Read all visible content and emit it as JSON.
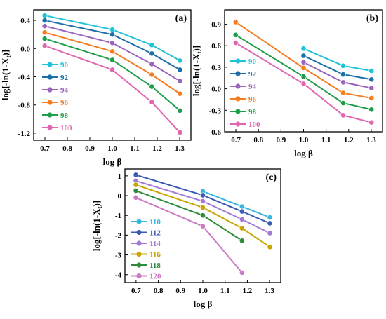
{
  "chart_data": [
    {
      "type": "line",
      "panel_label": "(a)",
      "xlabel": "log β",
      "ylabel": "log[-ln(1-X_t)]",
      "xlim": [
        0.65,
        1.35
      ],
      "ylim": [
        -1.3,
        0.55
      ],
      "xticks": [
        0.7,
        0.8,
        0.9,
        1.0,
        1.1,
        1.2,
        1.3
      ],
      "xtick_labels": [
        "0.7",
        "0.8",
        "0.9",
        "1.0",
        "1.1",
        "1.2",
        "1.3"
      ],
      "yticks": [
        -1.2,
        -0.8,
        -0.4,
        0.0,
        0.4
      ],
      "ytick_labels": [
        "-1.2",
        "-0.8",
        "-0.4",
        "0.0",
        "0.4"
      ],
      "legend_position": "left",
      "series": [
        {
          "name": "90",
          "color": "#1fc3d8",
          "x": [
            0.699,
            1.0,
            1.176,
            1.301
          ],
          "y": [
            0.47,
            0.27,
            0.05,
            -0.17
          ]
        },
        {
          "name": "92",
          "color": "#1c6fa8",
          "x": [
            0.699,
            1.0,
            1.176,
            1.301
          ],
          "y": [
            0.4,
            0.2,
            -0.07,
            -0.3
          ]
        },
        {
          "name": "94",
          "color": "#9966bb",
          "x": [
            0.699,
            1.0,
            1.176,
            1.301
          ],
          "y": [
            0.32,
            0.08,
            -0.22,
            -0.46
          ]
        },
        {
          "name": "96",
          "color": "#f57c1f",
          "x": [
            0.699,
            1.0,
            1.176,
            1.301
          ],
          "y": [
            0.23,
            -0.04,
            -0.37,
            -0.64
          ]
        },
        {
          "name": "98",
          "color": "#1f9e4a",
          "x": [
            0.699,
            1.0,
            1.176,
            1.301
          ],
          "y": [
            0.14,
            -0.16,
            -0.54,
            -0.88
          ]
        },
        {
          "name": "100",
          "color": "#e066b0",
          "x": [
            0.699,
            1.0,
            1.176,
            1.301
          ],
          "y": [
            0.04,
            -0.3,
            -0.76,
            -1.19
          ]
        }
      ]
    },
    {
      "type": "line",
      "panel_label": "(b)",
      "xlabel": "log β",
      "ylabel": "log[-ln(1-X_t)]",
      "xlim": [
        0.65,
        1.35
      ],
      "ylim": [
        -0.6,
        1.1
      ],
      "xticks": [
        0.7,
        0.8,
        0.9,
        1.0,
        1.1,
        1.2,
        1.3
      ],
      "xtick_labels": [
        "0.7",
        "0.8",
        "0.9",
        "1.0",
        "1.1",
        "1.2",
        "1.3"
      ],
      "yticks": [
        -0.6,
        -0.3,
        0.0,
        0.3,
        0.6,
        0.9
      ],
      "ytick_labels": [
        "-0.6",
        "-0.3",
        "0.0",
        "0.3",
        "0.6",
        "0.9"
      ],
      "legend_position": "center-left",
      "series": [
        {
          "name": "90",
          "color": "#1fc3d8",
          "x": [
            1.0,
            1.176,
            1.301
          ],
          "y": [
            0.56,
            0.32,
            0.25
          ]
        },
        {
          "name": "92",
          "color": "#1c6fa8",
          "x": [
            1.0,
            1.176,
            1.301
          ],
          "y": [
            0.46,
            0.2,
            0.13
          ]
        },
        {
          "name": "94",
          "color": "#9966bb",
          "x": [
            1.0,
            1.176,
            1.301
          ],
          "y": [
            0.37,
            0.09,
            0.01
          ]
        },
        {
          "name": "96",
          "color": "#f57c1f",
          "x": [
            0.699,
            1.0,
            1.176,
            1.301
          ],
          "y": [
            0.93,
            0.29,
            -0.06,
            -0.13
          ]
        },
        {
          "name": "98",
          "color": "#1f9e4a",
          "x": [
            0.699,
            1.0,
            1.176,
            1.301
          ],
          "y": [
            0.75,
            0.17,
            -0.2,
            -0.29
          ]
        },
        {
          "name": "100",
          "color": "#e066b0",
          "x": [
            0.699,
            1.0,
            1.176,
            1.301
          ],
          "y": [
            0.64,
            0.07,
            -0.37,
            -0.47
          ]
        }
      ]
    },
    {
      "type": "line",
      "panel_label": "(c)",
      "xlabel": "log β",
      "ylabel": "log[-ln(1-X_t)]",
      "xlim": [
        0.65,
        1.35
      ],
      "ylim": [
        -4.4,
        1.35
      ],
      "xticks": [
        0.7,
        0.8,
        0.9,
        1.0,
        1.1,
        1.2,
        1.3
      ],
      "xtick_labels": [
        "0.7",
        "0.8",
        "0.9",
        "1.0",
        "1.1",
        "1.2",
        "1.3"
      ],
      "yticks": [
        -4,
        -3,
        -2,
        -1,
        0,
        1
      ],
      "ytick_labels": [
        "-4",
        "-3",
        "-2",
        "-1",
        "0",
        "1"
      ],
      "legend_position": "lower-left",
      "series": [
        {
          "name": "110",
          "color": "#38b6e0",
          "x": [
            1.0,
            1.176,
            1.301
          ],
          "y": [
            0.22,
            -0.55,
            -1.1
          ]
        },
        {
          "name": "112",
          "color": "#3a5cb5",
          "x": [
            0.699,
            1.0,
            1.176,
            1.301
          ],
          "y": [
            1.05,
            0.02,
            -0.8,
            -1.4
          ]
        },
        {
          "name": "114",
          "color": "#a37ad6",
          "x": [
            0.699,
            1.0,
            1.176,
            1.301
          ],
          "y": [
            0.75,
            -0.28,
            -1.2,
            -1.9
          ]
        },
        {
          "name": "116",
          "color": "#c9a500",
          "x": [
            0.699,
            1.0,
            1.176,
            1.301
          ],
          "y": [
            0.55,
            -0.6,
            -1.65,
            -2.6
          ]
        },
        {
          "name": "118",
          "color": "#2e8b3a",
          "x": [
            0.699,
            1.0,
            1.176
          ],
          "y": [
            0.25,
            -1.0,
            -2.28
          ]
        },
        {
          "name": "120",
          "color": "#cc7ac2",
          "x": [
            0.699,
            1.0,
            1.176
          ],
          "y": [
            -0.1,
            -1.55,
            -3.9
          ]
        }
      ]
    }
  ]
}
